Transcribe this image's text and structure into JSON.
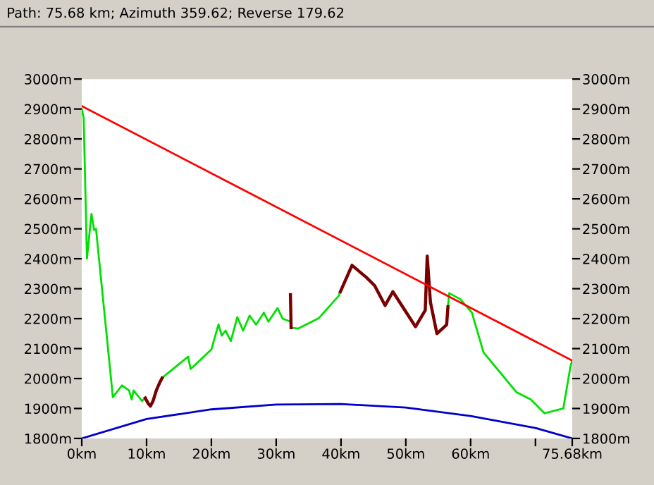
{
  "chart_data": {
    "type": "line",
    "title": "Path: 75.68 km; Azimuth 359.62; Reverse 179.62",
    "xlim": [
      0,
      75.68
    ],
    "xticks": [
      {
        "value": 0,
        "label": "0km"
      },
      {
        "value": 10,
        "label": "10km"
      },
      {
        "value": 20,
        "label": "20km"
      },
      {
        "value": 30,
        "label": "30km"
      },
      {
        "value": 40,
        "label": "40km"
      },
      {
        "value": 50,
        "label": "50km"
      },
      {
        "value": 60,
        "label": "60km"
      },
      {
        "value": 70,
        "label": null
      },
      {
        "value": 75.68,
        "label": "75.68km"
      }
    ],
    "ylim": [
      1800,
      3000
    ],
    "yticks": [
      {
        "value": 1800,
        "label": "1800m"
      },
      {
        "value": 1900,
        "label": "1900m"
      },
      {
        "value": 2000,
        "label": "2000m"
      },
      {
        "value": 2100,
        "label": "2100m"
      },
      {
        "value": 2200,
        "label": "2200m"
      },
      {
        "value": 2300,
        "label": "2300m"
      },
      {
        "value": 2400,
        "label": "2400m"
      },
      {
        "value": 2500,
        "label": "2500m"
      },
      {
        "value": 2600,
        "label": "2600m"
      },
      {
        "value": 2700,
        "label": "2700m"
      },
      {
        "value": 2800,
        "label": "2800m"
      },
      {
        "value": 2900,
        "label": "2900m"
      },
      {
        "value": 3000,
        "label": "3000m"
      }
    ],
    "y2lim": [
      1800,
      3000
    ],
    "y2ticks": [
      {
        "value": 1800,
        "label": "1800m"
      },
      {
        "value": 1900,
        "label": "1900m"
      },
      {
        "value": 2000,
        "label": "2000m"
      },
      {
        "value": 2100,
        "label": "2100m"
      },
      {
        "value": 2200,
        "label": "2200m"
      },
      {
        "value": 2300,
        "label": "2300m"
      },
      {
        "value": 2400,
        "label": "2400m"
      },
      {
        "value": 2500,
        "label": "2500m"
      },
      {
        "value": 2600,
        "label": "2600m"
      },
      {
        "value": 2700,
        "label": "2700m"
      },
      {
        "value": 2800,
        "label": "2800m"
      },
      {
        "value": 2900,
        "label": "2900m"
      },
      {
        "value": 3000,
        "label": "3000m"
      }
    ],
    "grid": false,
    "legend": false,
    "marker": "none",
    "line_style": "solid",
    "series": [
      {
        "color": "#0000cc",
        "x": [
          0,
          10,
          20,
          30,
          40,
          50,
          60,
          70,
          75.68
        ],
        "values": [
          1800,
          1865,
          1897,
          1913,
          1915,
          1903,
          1875,
          1835,
          1800
        ]
      },
      {
        "color": "#00e000",
        "x": [
          0,
          0.3,
          0.8,
          1.5,
          1.9,
          2.2,
          4.8,
          6.2,
          7.3,
          7.7,
          8.0,
          9.3,
          9.8,
          10.0,
          12.4,
          16.4,
          16.8,
          20.0,
          21.1,
          21.6,
          22.2,
          23.0,
          24.0,
          24.9,
          25.9,
          26.9,
          28.1,
          28.8,
          30.2,
          31.0,
          32.2,
          32.25,
          32.3,
          33.4,
          36.6,
          39.6,
          39.9,
          48.0,
          56.5,
          56.7,
          58.4,
          60.2,
          60.6,
          62.0,
          63.8,
          67.1,
          69.3,
          71.4,
          74.3,
          75.4,
          75.68
        ],
        "values": [
          2900,
          2870,
          2401,
          2550,
          2496,
          2500,
          1938,
          1977,
          1960,
          1930,
          1960,
          1925,
          1935,
          null,
          2002,
          2073,
          2032,
          2097,
          2181,
          2143,
          2160,
          2125,
          2205,
          2160,
          2210,
          2180,
          2220,
          2190,
          2235,
          2200,
          2190,
          null,
          2170,
          2167,
          2202,
          2275,
          2290,
          null,
          2240,
          2285,
          2265,
          2220,
          2190,
          2087,
          2040,
          1954,
          1930,
          1884,
          1900,
          2040,
          2060
        ]
      },
      {
        "color": "#7a0000",
        "x": [
          32.2,
          32.3,
          32.4,
          39.9,
          41.7,
          43.9,
          45.2,
          46.8,
          48.0,
          51.5,
          53.0,
          53.3,
          53.8,
          54.8,
          56.3,
          56.5
        ],
        "values": [
          2280,
          2170,
          null,
          2290,
          2378,
          2338,
          2310,
          2244,
          2290,
          2173,
          2228,
          2409,
          2255,
          2150,
          2180,
          2240
        ]
      },
      {
        "color": "#ff0000",
        "x": [
          0,
          75.68
        ],
        "values": [
          2910,
          2060
        ]
      },
      {
        "color": "#7a0000",
        "x": [
          9.8,
          10.3,
          10.6,
          11.0,
          11.5,
          12.0,
          12.4
        ],
        "values": [
          1935,
          1915,
          1908,
          1925,
          1960,
          1985,
          2002
        ]
      }
    ]
  }
}
